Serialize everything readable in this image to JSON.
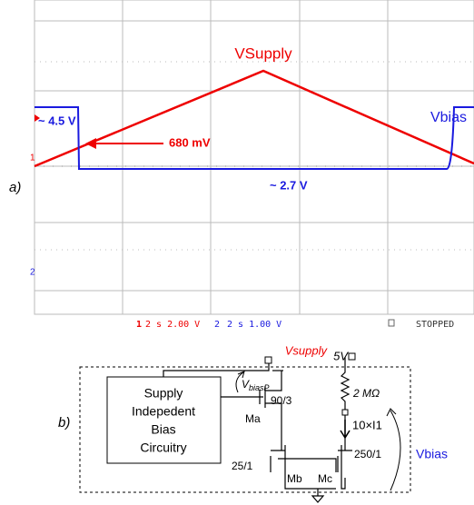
{
  "scope": {
    "trace_labels": {
      "supply": "VSupply",
      "bias": "Vbias"
    },
    "annotations": {
      "high": "~ 4.5 V",
      "threshold": "680 mV",
      "low": "~ 2.7 V"
    },
    "panel_label": "a)",
    "markers": {
      "ch1": "1",
      "ch2": "2"
    },
    "status": {
      "ch1_id": "1",
      "ch1": "2 s 2.00 V",
      "ch2_id": "2",
      "ch2": "2 s 1.00 V",
      "state": "STOPPED"
    }
  },
  "circuit": {
    "panel_label": "b)",
    "vsupply": "Vsupply",
    "v5": "5V",
    "block": [
      "Supply",
      "Indepedent",
      "Bias",
      "Circuitry"
    ],
    "vbiasp": "V",
    "vbiasp_sub": "biasP",
    "ma_size": "90/3",
    "ma": "Ma",
    "resistor": "2 MΩ",
    "current": "10×I1",
    "mb_size": "25/1",
    "mb": "Mb",
    "mc": "Mc",
    "mc_size": "250/1",
    "vbias": "Vbias"
  }
}
